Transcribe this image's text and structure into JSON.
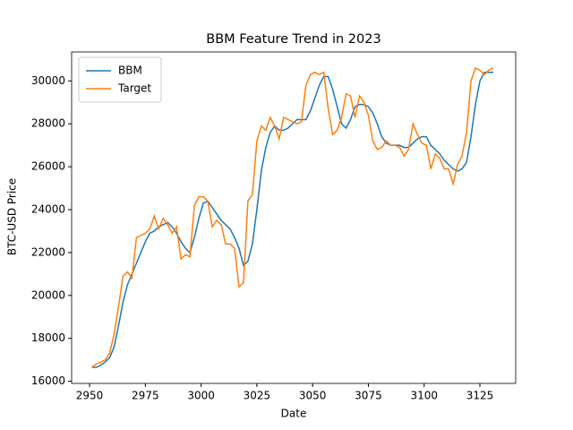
{
  "chart_data": {
    "type": "line",
    "title": "BBM Feature Trend in 2023",
    "xlabel": "Date",
    "ylabel": "BTC-USD Price",
    "x": [
      2951,
      2953,
      2955,
      2957,
      2959,
      2961,
      2963,
      2965,
      2967,
      2969,
      2971,
      2973,
      2975,
      2977,
      2979,
      2981,
      2983,
      2985,
      2987,
      2989,
      2991,
      2993,
      2995,
      2997,
      2999,
      3001,
      3003,
      3005,
      3007,
      3009,
      3011,
      3013,
      3015,
      3017,
      3019,
      3021,
      3023,
      3025,
      3027,
      3029,
      3031,
      3033,
      3035,
      3037,
      3039,
      3041,
      3043,
      3045,
      3047,
      3049,
      3051,
      3053,
      3055,
      3057,
      3059,
      3061,
      3063,
      3065,
      3067,
      3069,
      3071,
      3073,
      3075,
      3077,
      3079,
      3081,
      3083,
      3085,
      3087,
      3089,
      3091,
      3093,
      3095,
      3097,
      3099,
      3101,
      3103,
      3105,
      3107,
      3109,
      3111,
      3113,
      3115,
      3117,
      3119,
      3121,
      3123,
      3125,
      3127,
      3129,
      3131
    ],
    "series": [
      {
        "name": "BBM",
        "color": "#1f77b4",
        "values": [
          16650,
          16650,
          16750,
          16900,
          17100,
          17600,
          18600,
          19700,
          20500,
          21000,
          21500,
          22000,
          22500,
          22900,
          23000,
          23200,
          23300,
          23400,
          23200,
          22900,
          22500,
          22200,
          22000,
          22700,
          23600,
          24300,
          24400,
          24100,
          23800,
          23500,
          23300,
          23100,
          22700,
          22200,
          21400,
          21600,
          22400,
          24000,
          25800,
          26900,
          27600,
          27900,
          27700,
          27700,
          27800,
          28000,
          28200,
          28200,
          28200,
          28600,
          29200,
          29800,
          30200,
          30200,
          29600,
          28800,
          28000,
          27800,
          28200,
          28800,
          28900,
          28900,
          28800,
          28500,
          28000,
          27400,
          27100,
          27000,
          27000,
          27000,
          26900,
          26900,
          27100,
          27300,
          27400,
          27400,
          27000,
          26800,
          26600,
          26300,
          26100,
          25900,
          25800,
          25900,
          26200,
          27400,
          28900,
          30000,
          30400,
          30400,
          30400
        ]
      },
      {
        "name": "Target",
        "color": "#ff7f0e",
        "values": [
          16650,
          16800,
          16900,
          17000,
          17300,
          18200,
          19500,
          20900,
          21100,
          20800,
          22700,
          22800,
          22900,
          23100,
          23700,
          23100,
          23600,
          23300,
          22900,
          23200,
          21700,
          21900,
          21800,
          24200,
          24600,
          24600,
          24400,
          23200,
          23500,
          23300,
          22400,
          22400,
          22200,
          20400,
          20600,
          24400,
          24700,
          27200,
          27900,
          27700,
          28300,
          27900,
          27300,
          28300,
          28200,
          28100,
          28000,
          28100,
          29800,
          30300,
          30400,
          30300,
          30400,
          28700,
          27500,
          27700,
          28300,
          29400,
          29300,
          28300,
          29300,
          29000,
          28400,
          27200,
          26800,
          26900,
          27200,
          27000,
          27000,
          26900,
          26500,
          26800,
          28000,
          27500,
          27100,
          27000,
          25900,
          26600,
          26400,
          25900,
          25900,
          25200,
          26100,
          26500,
          27600,
          30000,
          30600,
          30500,
          30300,
          30500,
          30600
        ]
      }
    ],
    "xlim": [
      2941.95,
      3141.05
    ],
    "xticks": [
      2950,
      2975,
      3000,
      3025,
      3050,
      3075,
      3100,
      3125
    ],
    "ylim": [
      15900,
      31350
    ],
    "yticks": [
      16000,
      18000,
      20000,
      22000,
      24000,
      26000,
      28000,
      30000
    ],
    "legend": "upper left"
  }
}
